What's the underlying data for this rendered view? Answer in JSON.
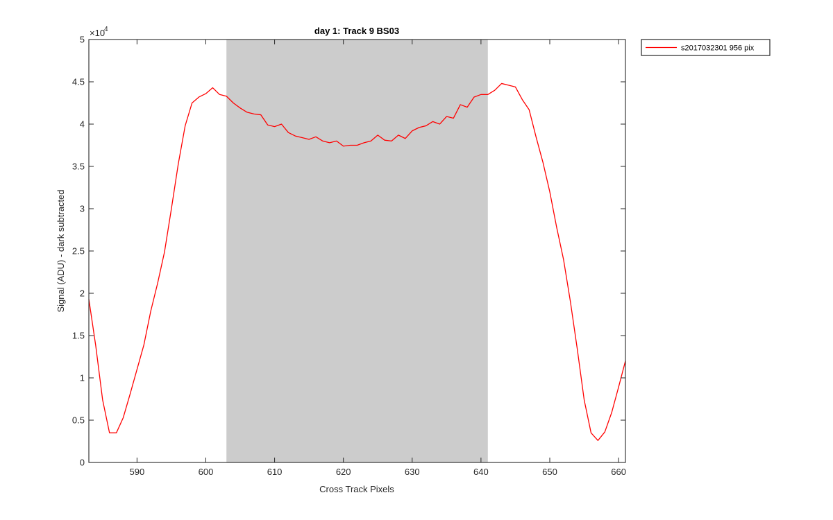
{
  "chart_data": {
    "type": "line",
    "title": "day 1: Track 9  BS03",
    "xlabel": "Cross Track Pixels",
    "ylabel": "Signal (ADU) - dark subtracted",
    "xlim": [
      583,
      661
    ],
    "ylim": [
      0,
      50000
    ],
    "y_exponent_label": "×10",
    "y_exponent_power": "4",
    "xticks": [
      590,
      600,
      610,
      620,
      630,
      640,
      650,
      660
    ],
    "xtick_labels": [
      "590",
      "600",
      "610",
      "620",
      "630",
      "640",
      "650",
      "660"
    ],
    "yticks": [
      0,
      5000,
      10000,
      15000,
      20000,
      25000,
      30000,
      35000,
      40000,
      45000,
      50000
    ],
    "ytick_labels": [
      "0",
      "0.5",
      "1",
      "1.5",
      "2",
      "2.5",
      "3",
      "3.5",
      "4",
      "4.5",
      "5"
    ],
    "grid": false,
    "legend_position": "outside-top-right",
    "shaded_region": {
      "x": [
        603,
        641
      ],
      "color": "#cccccc"
    },
    "series": [
      {
        "name": "s2017032301 956 pix",
        "color": "#ff0000",
        "x": [
          583,
          584,
          585,
          586,
          587,
          588,
          589,
          590,
          591,
          592,
          593,
          594,
          595,
          596,
          597,
          598,
          599,
          600,
          601,
          602,
          603,
          604,
          605,
          606,
          607,
          608,
          609,
          610,
          611,
          612,
          613,
          614,
          615,
          616,
          617,
          618,
          619,
          620,
          621,
          622,
          623,
          624,
          625,
          626,
          627,
          628,
          629,
          630,
          631,
          632,
          633,
          634,
          635,
          636,
          637,
          638,
          639,
          640,
          641,
          642,
          643,
          644,
          645,
          646,
          647,
          648,
          649,
          650,
          651,
          652,
          653,
          654,
          655,
          656,
          657,
          658,
          659,
          660,
          661
        ],
        "values": [
          19300,
          13800,
          7400,
          3500,
          3500,
          5300,
          8100,
          11000,
          13900,
          17900,
          21200,
          24900,
          30000,
          35300,
          39800,
          42500,
          43200,
          43600,
          44300,
          43500,
          43300,
          42500,
          41900,
          41400,
          41200,
          41100,
          39900,
          39700,
          40000,
          39000,
          38600,
          38400,
          38200,
          38500,
          38000,
          37800,
          38000,
          37400,
          37500,
          37500,
          37800,
          38000,
          38700,
          38100,
          38000,
          38700,
          38300,
          39200,
          39600,
          39800,
          40300,
          40000,
          40900,
          40700,
          42300,
          42000,
          43200,
          43500,
          43500,
          44000,
          44800,
          44600,
          44400,
          42900,
          41700,
          38500,
          35500,
          32000,
          27800,
          24000,
          19000,
          13400,
          7400,
          3500,
          2600,
          3600,
          5900,
          8900,
          12000
        ]
      }
    ]
  }
}
